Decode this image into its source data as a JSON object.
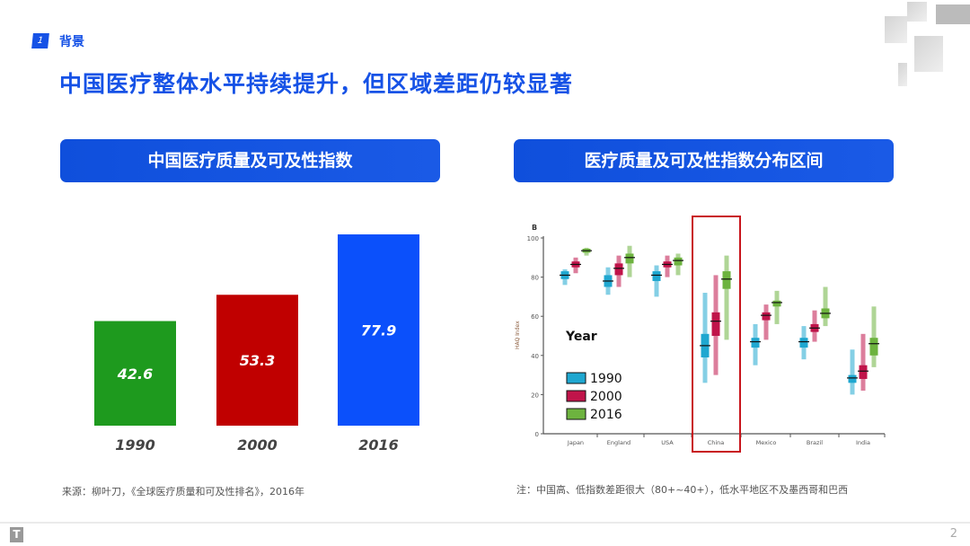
{
  "section": {
    "number": "1",
    "label": "背景"
  },
  "title": "中国医疗整体水平持续提升，但区域差距仍较显著",
  "left_panel": {
    "heading": "中国医疗质量及可及性指数",
    "source": "来源：柳叶刀，《全球医疗质量和可及性排名》，2016年"
  },
  "right_panel": {
    "heading": "医疗质量及可及性指数分布区间",
    "note": "注：中国高、低指数差距很大（80+~40+），低水平地区不及墨西哥和巴西"
  },
  "footer": {
    "page_number": "2"
  },
  "chart_data": [
    {
      "type": "bar",
      "categories": [
        "1990",
        "2000",
        "2016"
      ],
      "values": [
        42.6,
        53.3,
        77.9
      ],
      "data_labels": [
        "42.6",
        "53.3",
        "77.9"
      ],
      "colors": [
        "#1e9a1e",
        "#c00000",
        "#0b50fb"
      ],
      "ylim": [
        0,
        100
      ],
      "grid": false
    },
    {
      "type": "boxplot",
      "panel_label": "B",
      "ylabel": "HAQ Index",
      "ylim": [
        0,
        100
      ],
      "yticks": [
        0,
        20,
        40,
        60,
        80,
        100
      ],
      "categories": [
        "Japan",
        "England",
        "USA",
        "China",
        "Mexico",
        "Brazil",
        "India"
      ],
      "highlight": "China",
      "legend": {
        "title": "Year",
        "position": "lower-left"
      },
      "series": [
        {
          "name": "1990",
          "color": "#1fa7d0",
          "median": [
            81,
            78,
            81,
            45,
            47,
            47,
            28.5
          ],
          "box": [
            [
              79,
              83
            ],
            [
              75,
              81
            ],
            [
              78,
              83
            ],
            [
              39,
              51
            ],
            [
              44,
              49
            ],
            [
              44,
              49
            ],
            [
              26,
              30
            ]
          ],
          "range": [
            [
              76,
              84
            ],
            [
              71,
              85
            ],
            [
              70,
              86
            ],
            [
              26,
              72
            ],
            [
              35,
              56
            ],
            [
              38,
              55
            ],
            [
              20,
              43
            ]
          ]
        },
        {
          "name": "2000",
          "color": "#c0144a",
          "median": [
            86.5,
            84.5,
            86.5,
            57.5,
            60.5,
            54,
            32
          ],
          "box": [
            [
              85,
              88
            ],
            [
              81,
              87
            ],
            [
              85,
              88
            ],
            [
              50,
              62
            ],
            [
              58,
              62
            ],
            [
              52,
              56
            ],
            [
              28,
              35
            ]
          ],
          "range": [
            [
              82,
              90
            ],
            [
              75,
              91
            ],
            [
              80,
              91
            ],
            [
              30,
              81
            ],
            [
              48,
              66
            ],
            [
              47,
              63
            ],
            [
              22,
              51
            ]
          ]
        },
        {
          "name": "2016",
          "color": "#6db33f",
          "median": [
            93.5,
            90,
            88.5,
            79,
            67,
            61.5,
            46
          ],
          "box": [
            [
              92.5,
              94.5
            ],
            [
              87,
              92
            ],
            [
              86,
              90
            ],
            [
              74,
              83
            ],
            [
              65,
              68
            ],
            [
              59,
              64
            ],
            [
              40,
              49
            ]
          ],
          "range": [
            [
              91,
              95
            ],
            [
              80,
              96
            ],
            [
              81,
              92
            ],
            [
              48,
              91
            ],
            [
              56,
              73
            ],
            [
              55,
              75
            ],
            [
              34,
              65
            ]
          ]
        }
      ]
    }
  ]
}
